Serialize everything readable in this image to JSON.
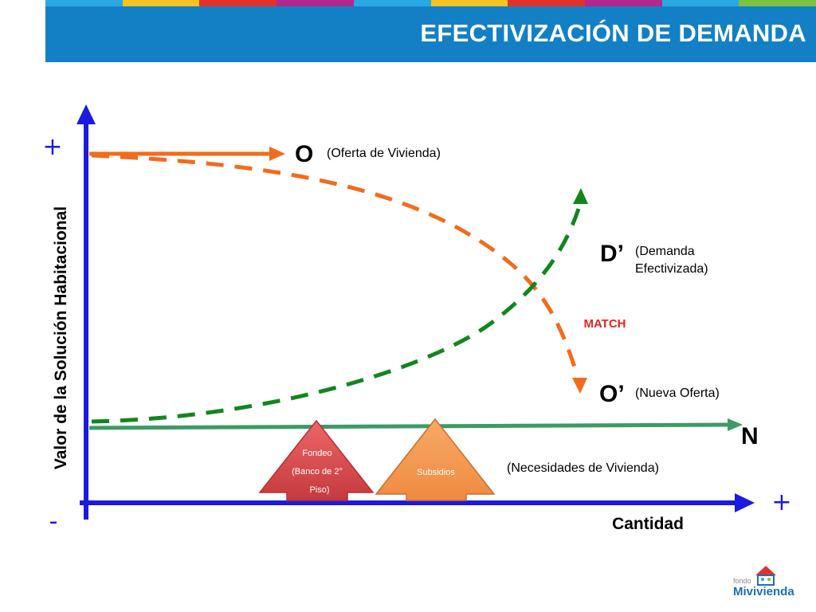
{
  "header": {
    "title": "EFECTIVIZACIÓN DE DEMANDA",
    "strip_colors": [
      "#29a9e0",
      "#f7c325",
      "#e0322d",
      "#b1298d",
      "#29a9e0",
      "#f7c325",
      "#e0322d",
      "#b1298d",
      "#29a9e0",
      "#7cc242"
    ]
  },
  "axes": {
    "y_label": "Valor de la Solución Habitacional",
    "x_label": "Cantidad",
    "plus_top": "+",
    "minus_bottom": "-",
    "plus_right": "+",
    "axis_color": "#1a1ae0"
  },
  "curves": {
    "offer": {
      "letter": "O",
      "desc": "(Oferta de Vivienda)",
      "color": "#f26b1d"
    },
    "new_offer": {
      "letter": "O’",
      "desc": "(Nueva Oferta)",
      "color": "#f26b1d"
    },
    "demand": {
      "letter": "D’",
      "desc_line1": "(Demanda",
      "desc_line2": "Efectivizada)",
      "color": "#11861e"
    },
    "needs": {
      "letter": "N",
      "desc": "(Necesidades de Vivienda)",
      "color": "#3e9a66"
    }
  },
  "match_label": "MATCH",
  "match_color": "#e0261c",
  "arrows": {
    "fondeo": {
      "line1": "Fondeo",
      "line2": "(Banco de 2°",
      "line3": "Piso)",
      "color": "#d64a4d"
    },
    "subsidios": {
      "label": "Subsidios",
      "color": "#f39a55"
    }
  },
  "logo": {
    "small": "fondo",
    "big": "Mivivienda"
  }
}
